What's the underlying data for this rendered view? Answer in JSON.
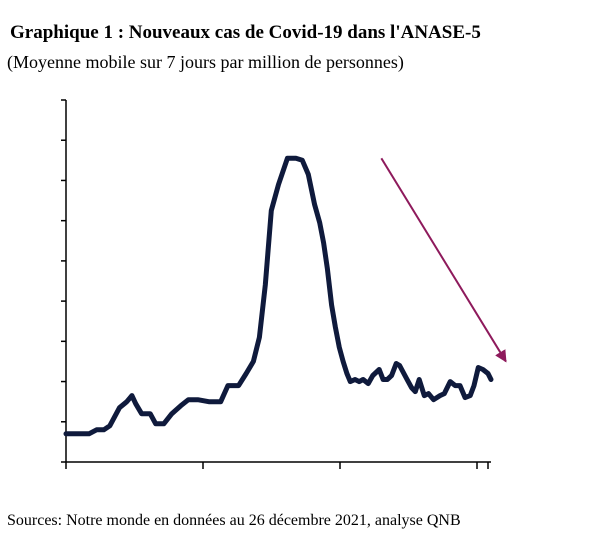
{
  "title": "Graphique 1 : Nouveaux cas de Covid-19 dans l'ANASE-5",
  "subtitle": "(Moyenne mobile sur 7 jours par million de personnes)",
  "source": "Sources: Notre monde en données au 26 décembre 2021, analyse QNB",
  "colors": {
    "series": "#0f1a3c",
    "arrow": "#8e1a5c",
    "axis": "#000000"
  },
  "chart_data": {
    "type": "line",
    "title": "Graphique 1 : Nouveaux cas de Covid-19 dans l'ANASE-5",
    "subtitle": "(Moyenne mobile sur 7 jours par million de personnes)",
    "xlabel": "",
    "ylabel": "",
    "y_tick_count": 9,
    "x_tick_count": 4,
    "ylim": [
      0,
      180
    ],
    "xlim": [
      0,
      1
    ],
    "grid": false,
    "legend": "none",
    "series": [
      {
        "x": [
          0.0,
          0.04,
          0.054,
          0.072,
          0.089,
          0.103,
          0.126,
          0.143,
          0.155,
          0.164,
          0.178,
          0.198,
          0.211,
          0.23,
          0.249,
          0.27,
          0.288,
          0.31,
          0.336,
          0.364,
          0.381,
          0.406,
          0.424,
          0.441,
          0.455,
          0.469,
          0.483,
          0.5,
          0.521,
          0.541,
          0.556,
          0.57,
          0.585,
          0.597,
          0.606,
          0.615,
          0.625,
          0.634,
          0.643,
          0.652,
          0.661,
          0.669,
          0.68,
          0.69,
          0.699,
          0.711,
          0.722,
          0.737,
          0.746,
          0.756,
          0.766,
          0.777,
          0.785,
          0.8,
          0.813,
          0.822,
          0.831,
          0.843,
          0.853,
          0.865,
          0.88,
          0.89,
          0.904,
          0.916,
          0.927,
          0.939,
          0.951,
          0.96,
          0.97,
          0.981,
          0.993,
          1.0
        ],
        "values": [
          14,
          14,
          14,
          16,
          16,
          18,
          27,
          30,
          33,
          29,
          24,
          24,
          19,
          19,
          24,
          28,
          31,
          31,
          30,
          30,
          38,
          38,
          44,
          50,
          62,
          88,
          125,
          138,
          151,
          151,
          150,
          143,
          128,
          119,
          109,
          96,
          78,
          67,
          57,
          50,
          44,
          40,
          41,
          40,
          41,
          39,
          43,
          46,
          41,
          41,
          43,
          49,
          48,
          42,
          37,
          35,
          41,
          33,
          34,
          31,
          33,
          34,
          40,
          38,
          38,
          32,
          33,
          38,
          47,
          46,
          44,
          41
        ]
      }
    ],
    "annotations": [
      {
        "type": "arrow",
        "from": [
          0.742,
          151
        ],
        "to": [
          1.035,
          50
        ]
      }
    ]
  }
}
